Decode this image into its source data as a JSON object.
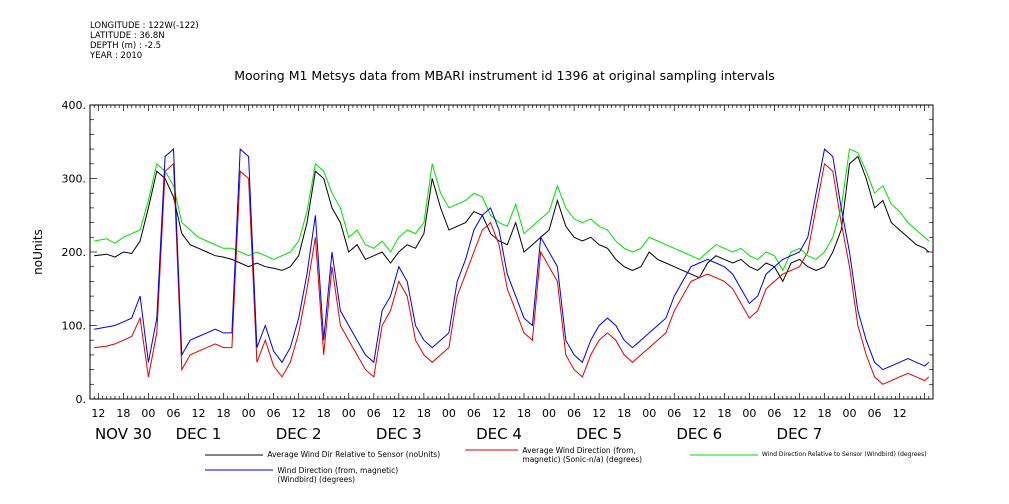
{
  "meta": {
    "longitude": "LONGITUDE : 122W(-122)",
    "latitude": "LATITUDE : 36.8N",
    "depth": "DEPTH (m) : -2.5",
    "year": "YEAR : 2010"
  },
  "chart_data": {
    "type": "line",
    "title": "Mooring M1 Metsys data from MBARI instrument id 1396 at original sampling intervals",
    "ylabel": "noUnits",
    "xlabel": "",
    "ylim": [
      0,
      400
    ],
    "y_ticks": [
      "0.",
      "100.",
      "200.",
      "300.",
      "400."
    ],
    "x_hour_labels": [
      "12",
      "18",
      "00",
      "06",
      "12",
      "18",
      "00",
      "06",
      "12",
      "18",
      "00",
      "06",
      "12",
      "18",
      "00",
      "06",
      "12",
      "18",
      "00",
      "06",
      "12",
      "18",
      "00",
      "06",
      "12",
      "18",
      "00",
      "06",
      "12",
      "18",
      "00",
      "06",
      "12"
    ],
    "x_day_labels": [
      "NOV 30",
      "DEC 1",
      "DEC 2",
      "DEC 3",
      "DEC 4",
      "DEC 5",
      "DEC 6",
      "DEC 7"
    ],
    "x_time_range_hours": [
      -14,
      188
    ],
    "grid": false,
    "series": [
      {
        "name": "Average Wind Dir Relative to Sensor (noUnits)",
        "color": "#000000",
        "x": [
          -13,
          -10,
          -8,
          -6,
          -4,
          -2,
          0,
          2,
          4,
          6,
          8,
          10,
          12,
          14,
          16,
          18,
          20,
          22,
          24,
          26,
          28,
          30,
          32,
          34,
          36,
          38,
          40,
          42,
          44,
          46,
          48,
          50,
          52,
          54,
          56,
          58,
          60,
          62,
          64,
          66,
          68,
          70,
          72,
          74,
          76,
          78,
          80,
          82,
          84,
          86,
          88,
          90,
          92,
          94,
          96,
          98,
          100,
          102,
          104,
          106,
          108,
          110,
          112,
          114,
          116,
          118,
          120,
          122,
          124,
          126,
          128,
          130,
          132,
          134,
          136,
          138,
          140,
          142,
          144,
          146,
          148,
          150,
          152,
          154,
          156,
          158,
          160,
          162,
          164,
          166,
          168,
          170,
          172,
          174,
          176,
          178,
          180,
          182,
          184,
          186,
          187
        ],
        "values": [
          195,
          197,
          193,
          200,
          198,
          215,
          260,
          310,
          300,
          275,
          225,
          210,
          205,
          200,
          195,
          193,
          190,
          185,
          180,
          185,
          180,
          178,
          175,
          180,
          195,
          240,
          310,
          300,
          260,
          240,
          200,
          210,
          190,
          195,
          200,
          185,
          200,
          210,
          205,
          225,
          300,
          260,
          230,
          235,
          240,
          255,
          250,
          225,
          215,
          210,
          240,
          200,
          210,
          220,
          230,
          270,
          235,
          220,
          215,
          220,
          210,
          205,
          190,
          180,
          175,
          180,
          200,
          190,
          185,
          180,
          175,
          170,
          165,
          185,
          195,
          190,
          185,
          190,
          180,
          175,
          185,
          180,
          160,
          185,
          190,
          180,
          175,
          180,
          200,
          230,
          320,
          330,
          300,
          260,
          270,
          240,
          230,
          220,
          210,
          205,
          200
        ]
      },
      {
        "name": "Average Wind Direction (from, magnetic) (Sonic-n/a) (degrees)",
        "color": "#e00000",
        "x": [
          -13,
          -10,
          -8,
          -6,
          -4,
          -2,
          0,
          2,
          4,
          6,
          8,
          10,
          12,
          14,
          16,
          18,
          20,
          22,
          24,
          26,
          28,
          30,
          32,
          34,
          36,
          38,
          40,
          42,
          44,
          46,
          48,
          50,
          52,
          54,
          56,
          58,
          60,
          62,
          64,
          66,
          68,
          70,
          72,
          74,
          76,
          78,
          80,
          82,
          84,
          86,
          88,
          90,
          92,
          94,
          96,
          98,
          100,
          102,
          104,
          106,
          108,
          110,
          112,
          114,
          116,
          118,
          120,
          122,
          124,
          126,
          128,
          130,
          132,
          134,
          136,
          138,
          140,
          142,
          144,
          146,
          148,
          150,
          152,
          154,
          156,
          158,
          160,
          162,
          164,
          166,
          168,
          170,
          172,
          174,
          176,
          178,
          180,
          182,
          184,
          186,
          187
        ],
        "values": [
          70,
          72,
          75,
          80,
          85,
          110,
          30,
          90,
          310,
          320,
          40,
          60,
          65,
          70,
          75,
          70,
          70,
          310,
          300,
          50,
          80,
          45,
          30,
          50,
          90,
          150,
          220,
          60,
          180,
          100,
          80,
          60,
          40,
          30,
          100,
          120,
          160,
          140,
          80,
          60,
          50,
          60,
          70,
          140,
          170,
          200,
          230,
          240,
          210,
          150,
          120,
          90,
          80,
          200,
          180,
          160,
          60,
          40,
          30,
          60,
          80,
          90,
          80,
          60,
          50,
          60,
          70,
          80,
          90,
          120,
          140,
          160,
          165,
          170,
          165,
          160,
          150,
          130,
          110,
          120,
          150,
          160,
          170,
          175,
          180,
          200,
          260,
          320,
          310,
          240,
          180,
          100,
          60,
          30,
          20,
          25,
          30,
          35,
          30,
          25,
          30
        ]
      },
      {
        "name": "Wind Direction Relative to Sensor (Windbird) (degrees)",
        "color": "#00dd00",
        "x": [
          -13,
          -10,
          -8,
          -6,
          -4,
          -2,
          0,
          2,
          4,
          6,
          8,
          10,
          12,
          14,
          16,
          18,
          20,
          22,
          24,
          26,
          28,
          30,
          32,
          34,
          36,
          38,
          40,
          42,
          44,
          46,
          48,
          50,
          52,
          54,
          56,
          58,
          60,
          62,
          64,
          66,
          68,
          70,
          72,
          74,
          76,
          78,
          80,
          82,
          84,
          86,
          88,
          90,
          92,
          94,
          96,
          98,
          100,
          102,
          104,
          106,
          108,
          110,
          112,
          114,
          116,
          118,
          120,
          122,
          124,
          126,
          128,
          130,
          132,
          134,
          136,
          138,
          140,
          142,
          144,
          146,
          148,
          150,
          152,
          154,
          156,
          158,
          160,
          162,
          164,
          166,
          168,
          170,
          172,
          174,
          176,
          178,
          180,
          182,
          184,
          186,
          187
        ],
        "values": [
          215,
          218,
          212,
          220,
          225,
          230,
          270,
          320,
          310,
          290,
          240,
          230,
          220,
          215,
          210,
          205,
          205,
          200,
          195,
          200,
          195,
          190,
          195,
          200,
          215,
          255,
          320,
          310,
          280,
          260,
          220,
          230,
          210,
          205,
          215,
          200,
          220,
          230,
          225,
          240,
          320,
          280,
          260,
          265,
          270,
          280,
          275,
          250,
          240,
          235,
          265,
          225,
          235,
          245,
          255,
          290,
          260,
          245,
          240,
          245,
          235,
          230,
          215,
          205,
          200,
          205,
          220,
          215,
          210,
          205,
          200,
          195,
          190,
          200,
          210,
          205,
          200,
          205,
          195,
          190,
          200,
          195,
          175,
          200,
          205,
          195,
          190,
          200,
          220,
          260,
          340,
          335,
          310,
          280,
          290,
          265,
          255,
          240,
          230,
          220,
          215
        ]
      },
      {
        "name": "Wind Direction (from, magnetic) (Windbird) (degrees)",
        "color": "#0000dd",
        "x": [
          -13,
          -10,
          -8,
          -6,
          -4,
          -2,
          0,
          2,
          4,
          6,
          8,
          10,
          12,
          14,
          16,
          18,
          20,
          22,
          24,
          26,
          28,
          30,
          32,
          34,
          36,
          38,
          40,
          42,
          44,
          46,
          48,
          50,
          52,
          54,
          56,
          58,
          60,
          62,
          64,
          66,
          68,
          70,
          72,
          74,
          76,
          78,
          80,
          82,
          84,
          86,
          88,
          90,
          92,
          94,
          96,
          98,
          100,
          102,
          104,
          106,
          108,
          110,
          112,
          114,
          116,
          118,
          120,
          122,
          124,
          126,
          128,
          130,
          132,
          134,
          136,
          138,
          140,
          142,
          144,
          146,
          148,
          150,
          152,
          154,
          156,
          158,
          160,
          162,
          164,
          166,
          168,
          170,
          172,
          174,
          176,
          178,
          180,
          182,
          184,
          186,
          187
        ],
        "values": [
          95,
          98,
          100,
          105,
          110,
          140,
          50,
          110,
          330,
          340,
          60,
          80,
          85,
          90,
          95,
          90,
          90,
          340,
          330,
          70,
          100,
          65,
          50,
          70,
          110,
          170,
          250,
          80,
          200,
          120,
          100,
          80,
          60,
          50,
          120,
          140,
          180,
          160,
          100,
          80,
          70,
          80,
          90,
          160,
          190,
          230,
          250,
          260,
          230,
          170,
          140,
          110,
          100,
          220,
          200,
          180,
          80,
          60,
          50,
          80,
          100,
          110,
          100,
          80,
          70,
          80,
          90,
          100,
          110,
          140,
          160,
          180,
          185,
          190,
          185,
          180,
          170,
          150,
          130,
          140,
          170,
          180,
          190,
          195,
          200,
          220,
          280,
          340,
          330,
          260,
          200,
          120,
          80,
          50,
          40,
          45,
          50,
          55,
          50,
          45,
          50
        ]
      }
    ]
  }
}
